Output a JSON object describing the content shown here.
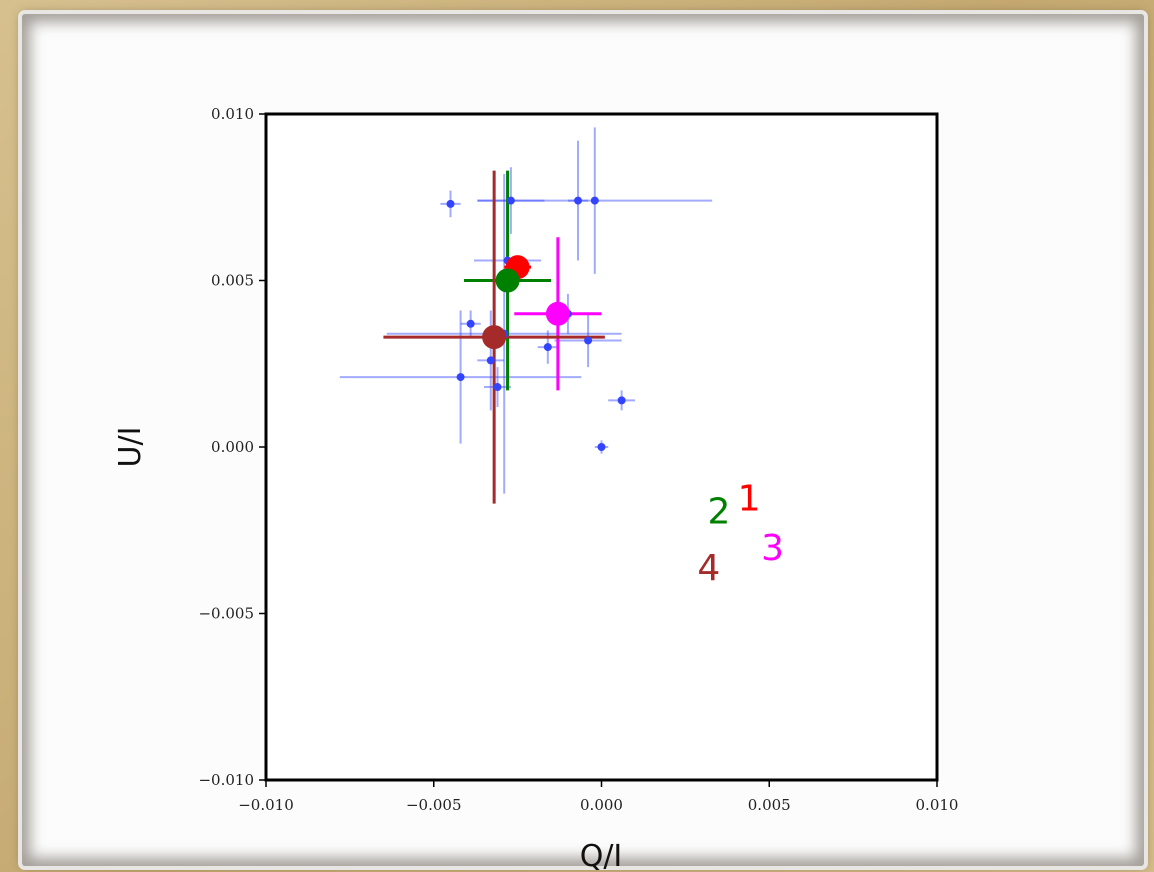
{
  "chart_data": {
    "type": "scatter",
    "xlabel": "Q/I",
    "ylabel": "U/I",
    "xlim": [
      -0.01,
      0.01
    ],
    "ylim": [
      -0.01,
      0.01
    ],
    "xticks": [
      "−0.010",
      "−0.005",
      "0.000",
      "0.005",
      "0.010"
    ],
    "yticks": [
      "0.010",
      "0.005",
      "0.000",
      "−0.005",
      "−0.010"
    ],
    "grid": false,
    "series": [
      {
        "color": "#3344ff",
        "points": [
          {
            "x": -0.0045,
            "y": 0.0073,
            "xerr": 0.0003,
            "yerr": 0.0004
          },
          {
            "x": -0.0027,
            "y": 0.0074,
            "xerr": 0.001,
            "yerr": 0.001
          },
          {
            "x": -0.0007,
            "y": 0.0074,
            "xerr": 0.0003,
            "yerr": 0.0018
          },
          {
            "x": -0.0002,
            "y": 0.0074,
            "xerr": 0.0035,
            "yerr": 0.0022
          },
          {
            "x": -0.0028,
            "y": 0.0056,
            "xerr": 0.001,
            "yerr": 0.0014
          },
          {
            "x": -0.0039,
            "y": 0.0037,
            "xerr": 0.0003,
            "yerr": 0.0004
          },
          {
            "x": -0.0029,
            "y": 0.0034,
            "xerr": 0.0035,
            "yerr": 0.0048
          },
          {
            "x": -0.001,
            "y": 0.004,
            "xerr": 0.0004,
            "yerr": 0.0006
          },
          {
            "x": -0.0016,
            "y": 0.003,
            "xerr": 0.0003,
            "yerr": 0.0005
          },
          {
            "x": -0.0004,
            "y": 0.0032,
            "xerr": 0.001,
            "yerr": 0.0008
          },
          {
            "x": -0.0042,
            "y": 0.0021,
            "xerr": 0.0036,
            "yerr": 0.002
          },
          {
            "x": -0.0033,
            "y": 0.0026,
            "xerr": 0.0004,
            "yerr": 0.0015
          },
          {
            "x": -0.0031,
            "y": 0.0018,
            "xerr": 0.0004,
            "yerr": 0.0006
          },
          {
            "x": 0.0006,
            "y": 0.0014,
            "xerr": 0.0004,
            "yerr": 0.0003
          },
          {
            "x": 0.0,
            "y": 0.0,
            "xerr": 0.0002,
            "yerr": 0.0002
          }
        ]
      },
      {
        "color": "#ff0000",
        "label": "1",
        "points": [
          {
            "x": -0.0025,
            "y": 0.0054,
            "xerr": 0.0004,
            "yerr": 0.0003
          }
        ]
      },
      {
        "color": "#008000",
        "label": "2",
        "points": [
          {
            "x": -0.0028,
            "y": 0.005,
            "xerr": 0.0013,
            "yerr": 0.0033
          }
        ]
      },
      {
        "color": "#ff00ff",
        "label": "3",
        "points": [
          {
            "x": -0.0013,
            "y": 0.004,
            "xerr": 0.0013,
            "yerr": 0.0023
          }
        ]
      },
      {
        "color": "#a52a2a",
        "label": "4",
        "points": [
          {
            "x": -0.0032,
            "y": 0.0033,
            "xerr": 0.0033,
            "yerr": 0.005
          }
        ]
      }
    ],
    "annotations": [
      {
        "text": "1",
        "x": 0.0044,
        "y": -0.0019,
        "color": "#ff0000"
      },
      {
        "text": "2",
        "x": 0.0035,
        "y": -0.0023,
        "color": "#008000"
      },
      {
        "text": "3",
        "x": 0.0051,
        "y": -0.0034,
        "color": "#ff00ff"
      },
      {
        "text": "4",
        "x": 0.0032,
        "y": -0.004,
        "color": "#a52a2a"
      }
    ]
  }
}
